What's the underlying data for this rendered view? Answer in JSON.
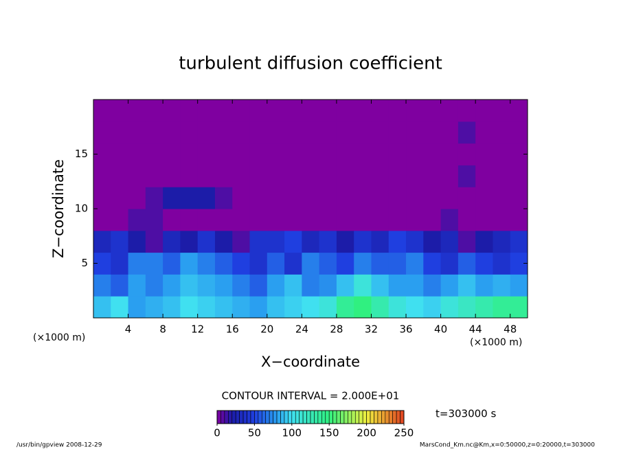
{
  "chart_data": {
    "type": "contour",
    "title": "turbulent diffusion coefficient",
    "x_label": "X−coordinate",
    "y_label": "Z−coordinate",
    "x_unit": "(×1000 m)",
    "x_unit_right": "(×1000 m)",
    "contour_interval": "CONTOUR INTERVAL = 2.000E+01",
    "time_label": "t=303000 s",
    "footer_left": "/usr/bin/gpview  2008-12-29",
    "footer_right": "MarsCond_Km.nc@Km,x=0:50000,z=0:20000,t=303000",
    "xlim": [
      0,
      50
    ],
    "ylim": [
      0,
      20
    ],
    "xticks": [
      4,
      8,
      12,
      16,
      20,
      24,
      28,
      32,
      36,
      40,
      44,
      48
    ],
    "yticks": [
      5,
      10,
      15
    ],
    "clim": [
      0,
      250
    ],
    "cticks": [
      0,
      50,
      100,
      150,
      200,
      250
    ],
    "colorscale": [
      [
        0,
        "#7f00a0"
      ],
      [
        20,
        "#1c1ca8"
      ],
      [
        50,
        "#1f3fe0"
      ],
      [
        80,
        "#2a9ff0"
      ],
      [
        100,
        "#40e0f0"
      ],
      [
        150,
        "#30f080"
      ],
      [
        200,
        "#f0f040"
      ],
      [
        250,
        "#e04020"
      ]
    ],
    "z": [
      [
        90,
        100,
        80,
        85,
        90,
        100,
        95,
        90,
        85,
        80,
        90,
        95,
        100,
        110,
        140,
        150,
        130,
        110,
        100,
        95,
        110,
        120,
        130,
        140,
        140
      ],
      [
        70,
        60,
        80,
        70,
        80,
        90,
        85,
        80,
        70,
        60,
        80,
        90,
        70,
        75,
        90,
        110,
        90,
        80,
        80,
        70,
        80,
        90,
        80,
        85,
        80
      ],
      [
        50,
        40,
        70,
        70,
        60,
        80,
        70,
        60,
        50,
        40,
        60,
        40,
        70,
        60,
        50,
        70,
        60,
        60,
        70,
        50,
        40,
        60,
        50,
        40,
        50
      ],
      [
        30,
        40,
        20,
        10,
        30,
        20,
        40,
        20,
        10,
        40,
        40,
        50,
        30,
        40,
        20,
        40,
        30,
        50,
        40,
        20,
        30,
        10,
        20,
        30,
        40
      ],
      [
        0,
        0,
        10,
        10,
        0,
        0,
        0,
        0,
        0,
        0,
        0,
        0,
        0,
        0,
        0,
        0,
        0,
        0,
        0,
        0,
        10,
        0,
        0,
        0,
        0
      ],
      [
        0,
        0,
        0,
        10,
        20,
        20,
        20,
        10,
        0,
        0,
        0,
        0,
        0,
        0,
        0,
        0,
        0,
        0,
        0,
        0,
        0,
        0,
        0,
        0,
        0
      ],
      [
        0,
        0,
        0,
        0,
        0,
        0,
        0,
        0,
        0,
        0,
        0,
        0,
        0,
        0,
        0,
        0,
        0,
        0,
        0,
        0,
        0,
        10,
        0,
        0,
        0
      ],
      [
        0,
        0,
        0,
        0,
        0,
        0,
        0,
        0,
        0,
        0,
        0,
        0,
        0,
        0,
        0,
        0,
        0,
        0,
        0,
        0,
        0,
        0,
        0,
        0,
        0
      ],
      [
        0,
        0,
        0,
        0,
        0,
        0,
        0,
        0,
        0,
        0,
        0,
        0,
        0,
        0,
        0,
        0,
        0,
        0,
        0,
        0,
        0,
        10,
        0,
        0,
        0
      ],
      [
        0,
        0,
        0,
        0,
        0,
        0,
        0,
        0,
        0,
        0,
        0,
        0,
        0,
        0,
        0,
        0,
        0,
        0,
        0,
        0,
        0,
        0,
        0,
        0,
        0
      ]
    ]
  }
}
